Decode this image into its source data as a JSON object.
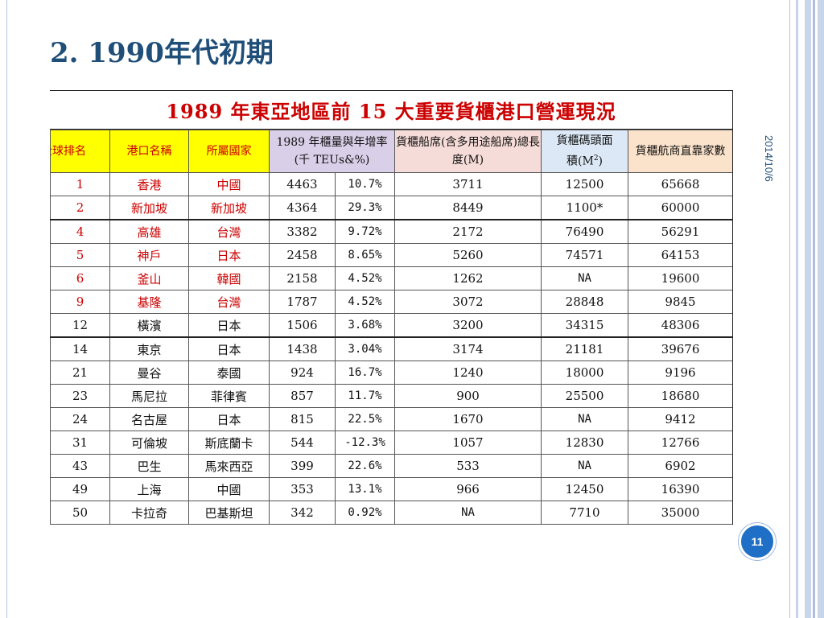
{
  "slide": {
    "title": "2. 1990年代初期",
    "date": "2014/10/6",
    "page_number": "11"
  },
  "table": {
    "heading": "1989 年東亞地區前 15 大重要貨櫃港口營運現況",
    "headers": {
      "rank": "全球排名",
      "port": "港口名稱",
      "country": "所屬國家",
      "throughput": "1989 年櫃量與年增率(千 TEUs&%)",
      "berth": "貨櫃船席(含多用途船席)總長度(M)",
      "area_line1": "貨櫃碼頭面",
      "area_line2": "積(M",
      "area_sup": "2",
      "area_close": ")",
      "carriers": "貨櫃航商直靠家數"
    },
    "rows": [
      {
        "rank": "1",
        "port": "香港",
        "country": "中國",
        "teu": "4463",
        "growth": "10.7%",
        "berth": "3711",
        "area": "12500",
        "carriers": "65668"
      },
      {
        "rank": "2",
        "port": "新加坡",
        "country": "新加坡",
        "teu": "4364",
        "growth": "29.3%",
        "berth": "8449",
        "area": "1100*",
        "carriers": "60000"
      },
      {
        "rank": "4",
        "port": "高雄",
        "country": "台灣",
        "teu": "3382",
        "growth": "9.72%",
        "berth": "2172",
        "area": "76490",
        "carriers": "56291"
      },
      {
        "rank": "5",
        "port": "神戶",
        "country": "日本",
        "teu": "2458",
        "growth": "8.65%",
        "berth": "5260",
        "area": "74571",
        "carriers": "64153"
      },
      {
        "rank": "6",
        "port": "釜山",
        "country": "韓國",
        "teu": "2158",
        "growth": "4.52%",
        "berth": "1262",
        "area": "NA",
        "carriers": "19600"
      },
      {
        "rank": "9",
        "port": "基隆",
        "country": "台灣",
        "teu": "1787",
        "growth": "4.52%",
        "berth": "3072",
        "area": "28848",
        "carriers": "9845"
      },
      {
        "rank": "12",
        "port": "橫濱",
        "country": "日本",
        "teu": "1506",
        "growth": "3.68%",
        "berth": "3200",
        "area": "34315",
        "carriers": "48306"
      },
      {
        "rank": "14",
        "port": "東京",
        "country": "日本",
        "teu": "1438",
        "growth": "3.04%",
        "berth": "3174",
        "area": "21181",
        "carriers": "39676"
      },
      {
        "rank": "21",
        "port": "曼谷",
        "country": "泰國",
        "teu": "924",
        "growth": "16.7%",
        "berth": "1240",
        "area": "18000",
        "carriers": "9196"
      },
      {
        "rank": "23",
        "port": "馬尼拉",
        "country": "菲律賓",
        "teu": "857",
        "growth": "11.7%",
        "berth": "900",
        "area": "25500",
        "carriers": "18680"
      },
      {
        "rank": "24",
        "port": "名古屋",
        "country": "日本",
        "teu": "815",
        "growth": "22.5%",
        "berth": "1670",
        "area": "NA",
        "carriers": "9412"
      },
      {
        "rank": "31",
        "port": "可倫坡",
        "country": "斯底蘭卡",
        "teu": "544",
        "growth": "-12.3%",
        "berth": "1057",
        "area": "12830",
        "carriers": "12766"
      },
      {
        "rank": "43",
        "port": "巴生",
        "country": "馬來西亞",
        "teu": "399",
        "growth": "22.6%",
        "berth": "533",
        "area": "NA",
        "carriers": "6902"
      },
      {
        "rank": "49",
        "port": "上海",
        "country": "中國",
        "teu": "353",
        "growth": "13.1%",
        "berth": "966",
        "area": "12450",
        "carriers": "16390"
      },
      {
        "rank": "50",
        "port": "卡拉奇",
        "country": "巴基斯坦",
        "teu": "342",
        "growth": "0.92%",
        "berth": "NA",
        "area": "7710",
        "carriers": "35000"
      }
    ]
  },
  "colors": {
    "title": "#1f4e79",
    "heading_red": "#cc0000",
    "header_yellow": "#ffff00",
    "badge": "#1f6fc6"
  }
}
